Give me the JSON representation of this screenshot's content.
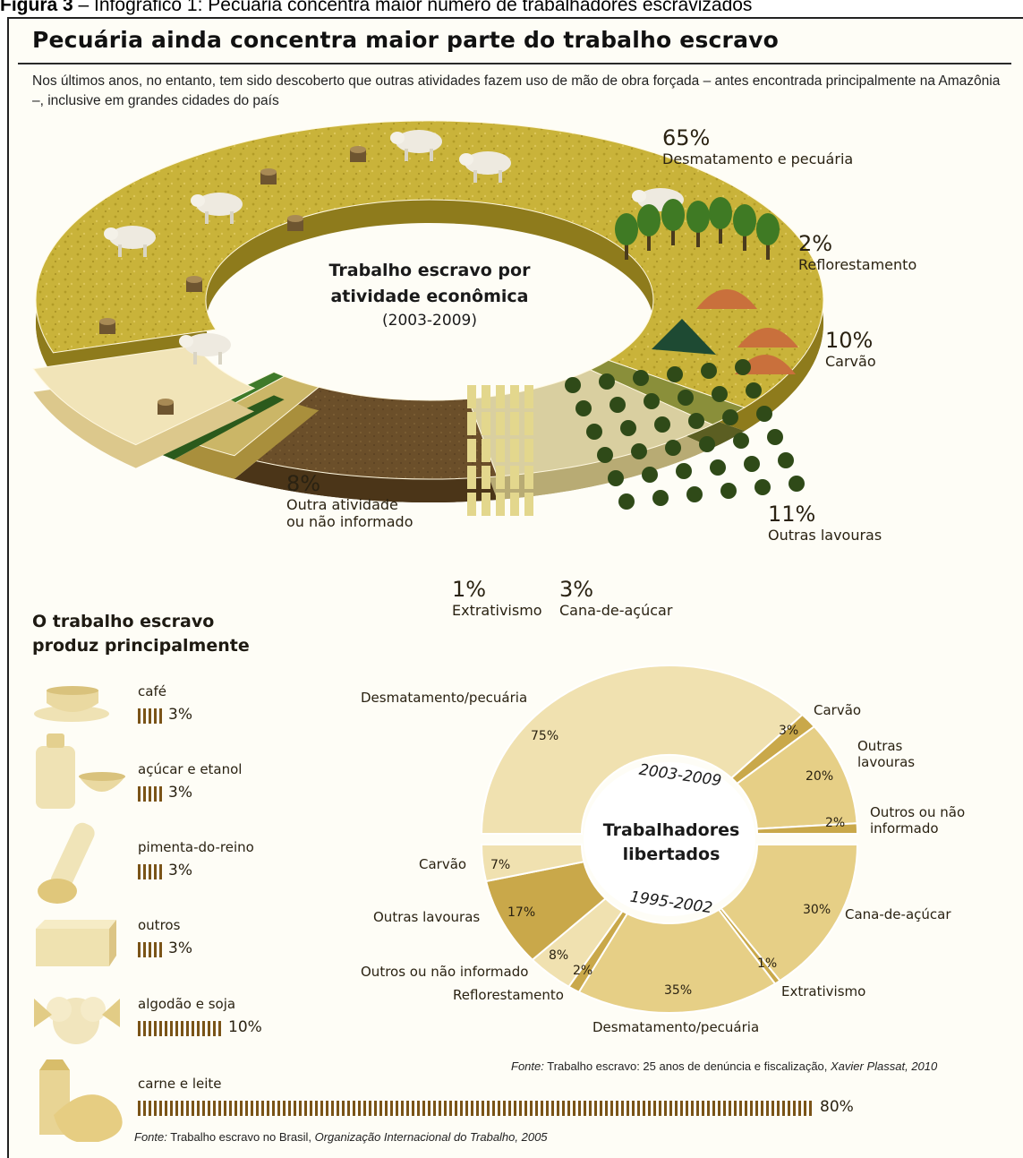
{
  "figure_caption": {
    "prefix": "Figura 3",
    "text": " – Infográfico 1: Pecuária concentra maior número de trabalhadores escravizados"
  },
  "title": "Pecuária ainda concentra maior parte do trabalho escravo",
  "intro": "Nos últimos anos, no entanto, tem sido descoberto que outras atividades fazem uso de mão de obra forçada – antes encontrada principalmente na Amazônia –, inclusive em grandes cidades do país",
  "colors": {
    "pasture": "#c9b33a",
    "pasture_dark": "#8e7b1c",
    "reflorest": "#8a8f3a",
    "carvao": "#d9cfa0",
    "soil": "#6b4f2a",
    "sugarcane": "#cbb667",
    "outra": "#f1e4b8",
    "ring2_light": "#f0e1b0",
    "ring2_mid": "#e6cf86",
    "ring2_dark": "#c9a84a",
    "bar": "#7a5418"
  },
  "chart_data": [
    {
      "type": "pie",
      "title": "Trabalho escravo por atividade econômica",
      "subtitle": "(2003-2009)",
      "slices": [
        {
          "label": "Desmatamento e pecuária",
          "value": 65,
          "display": "65%"
        },
        {
          "label": "Reflorestamento",
          "value": 2,
          "display": "2%"
        },
        {
          "label": "Carvão",
          "value": 10,
          "display": "10%"
        },
        {
          "label": "Outras lavouras",
          "value": 11,
          "display": "11%"
        },
        {
          "label": "Cana-de-açúcar",
          "value": 3,
          "display": "3%"
        },
        {
          "label": "Extrativismo",
          "value": 1,
          "display": "1%"
        },
        {
          "label": "Outra atividade ou não informado",
          "label_lines": [
            "Outra atividade",
            "ou não informado"
          ],
          "value": 8,
          "display": "8%"
        }
      ]
    },
    {
      "type": "bar",
      "title": "O trabalho escravo produz principalmente",
      "title_lines": [
        "O trabalho escravo",
        "produz principalmente"
      ],
      "categories": [
        "café",
        "açúcar e etanol",
        "pimenta-do-reino",
        "outros",
        "algodão e soja",
        "carne e leite"
      ],
      "values": [
        3,
        3,
        3,
        3,
        10,
        80
      ],
      "value_labels": [
        "3%",
        "3%",
        "3%",
        "3%",
        "10%",
        "80%"
      ],
      "source_prefix": "Fonte:",
      "source": " Trabalho escravo no Brasil, ",
      "source_italic": "Organização Internacional do Trabalho, 2005"
    },
    {
      "type": "pie",
      "title": "Trabalhadores libertados",
      "title_lines": [
        "Trabalhadores",
        "libertados"
      ],
      "periods": [
        {
          "period": "2003-2009",
          "slices": [
            {
              "label": "Desmatamento/pecuária",
              "value": 75,
              "display": "75%"
            },
            {
              "label": "Carvão",
              "value": 3,
              "display": "3%"
            },
            {
              "label": "Outras lavouras",
              "label_lines": [
                "Outras",
                "lavouras"
              ],
              "value": 20,
              "display": "20%"
            },
            {
              "label": "Outros ou não informado",
              "label_lines": [
                "Outros ou não",
                "informado"
              ],
              "value": 2,
              "display": "2%"
            }
          ]
        },
        {
          "period": "1995-2002",
          "slices": [
            {
              "label": "Cana-de-açúcar",
              "value": 30,
              "display": "30%"
            },
            {
              "label": "Extrativismo",
              "value": 1,
              "display": "1%"
            },
            {
              "label": "Desmatamento/pecuária",
              "value": 35,
              "display": "35%"
            },
            {
              "label": "Reflorestamento",
              "value": 2,
              "display": "2%"
            },
            {
              "label": "Outros ou não informado",
              "value": 8,
              "display": "8%"
            },
            {
              "label": "Outras lavouras",
              "value": 17,
              "display": "17%"
            },
            {
              "label": "Carvão",
              "value": 7,
              "display": "7%"
            }
          ]
        }
      ],
      "source_prefix": "Fonte:",
      "source": " Trabalho escravo: 25 anos de denúncia e fiscalização, ",
      "source_italic": "Xavier Plassat, 2010"
    }
  ]
}
